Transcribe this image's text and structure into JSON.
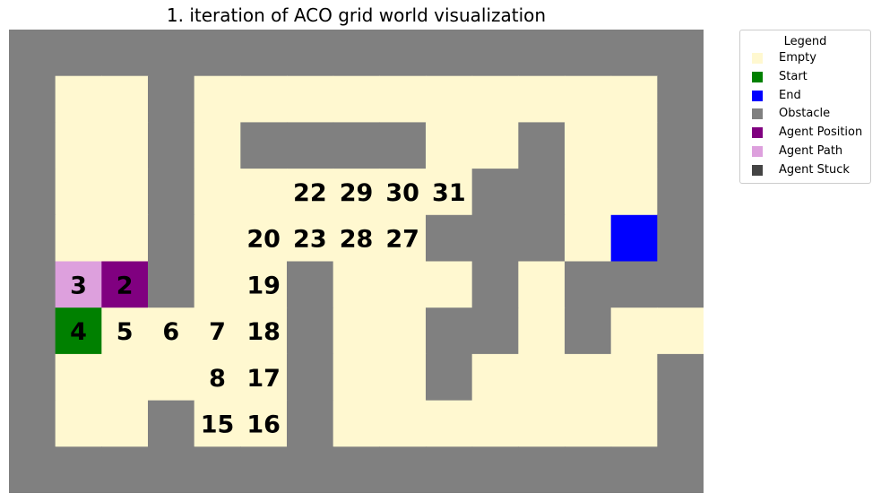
{
  "title": "1. iteration of ACO grid world visualization",
  "colors": {
    "empty": "#fff8d0",
    "start": "#008000",
    "end": "#0000ff",
    "obstacle": "#808080",
    "agent_position": "#800080",
    "agent_path": "#dda0dd",
    "agent_stuck": "#444444"
  },
  "grid": {
    "legend_key": {
      ".": "empty",
      "#": "obstacle",
      "S": "start",
      "E": "end",
      "A": "agent_position",
      "P": "agent_path"
    },
    "rows": [
      "###############",
      "#..#..........#",
      "#..#.####..#..#",
      "#..#......##..#",
      "#..#.....###.E#",
      "#PA#..#...#.###",
      "#S....#..##.#..",
      "#.....#..#....#",
      "#..#..#.......#",
      "###############"
    ],
    "cell_labels": [
      {
        "row": 3,
        "col": 6,
        "text": "22"
      },
      {
        "row": 3,
        "col": 7,
        "text": "29"
      },
      {
        "row": 3,
        "col": 8,
        "text": "30"
      },
      {
        "row": 3,
        "col": 9,
        "text": "31"
      },
      {
        "row": 4,
        "col": 5,
        "text": "20"
      },
      {
        "row": 4,
        "col": 6,
        "text": "23"
      },
      {
        "row": 4,
        "col": 7,
        "text": "28"
      },
      {
        "row": 4,
        "col": 8,
        "text": "27"
      },
      {
        "row": 5,
        "col": 1,
        "text": "3"
      },
      {
        "row": 5,
        "col": 2,
        "text": "2"
      },
      {
        "row": 5,
        "col": 5,
        "text": "19"
      },
      {
        "row": 6,
        "col": 1,
        "text": "4"
      },
      {
        "row": 6,
        "col": 2,
        "text": "5"
      },
      {
        "row": 6,
        "col": 3,
        "text": "6"
      },
      {
        "row": 6,
        "col": 4,
        "text": "7"
      },
      {
        "row": 6,
        "col": 5,
        "text": "18"
      },
      {
        "row": 7,
        "col": 4,
        "text": "8"
      },
      {
        "row": 7,
        "col": 5,
        "text": "17"
      },
      {
        "row": 8,
        "col": 4,
        "text": "15"
      },
      {
        "row": 8,
        "col": 5,
        "text": "16"
      }
    ]
  },
  "legend": {
    "title": "Legend",
    "items": [
      {
        "label": "Empty",
        "color": "#fff8d0"
      },
      {
        "label": "Start",
        "color": "#008000"
      },
      {
        "label": "End",
        "color": "#0000ff"
      },
      {
        "label": "Obstacle",
        "color": "#808080"
      },
      {
        "label": "Agent Position",
        "color": "#800080"
      },
      {
        "label": "Agent Path",
        "color": "#dda0dd"
      },
      {
        "label": "Agent Stuck",
        "color": "#444444"
      }
    ]
  }
}
